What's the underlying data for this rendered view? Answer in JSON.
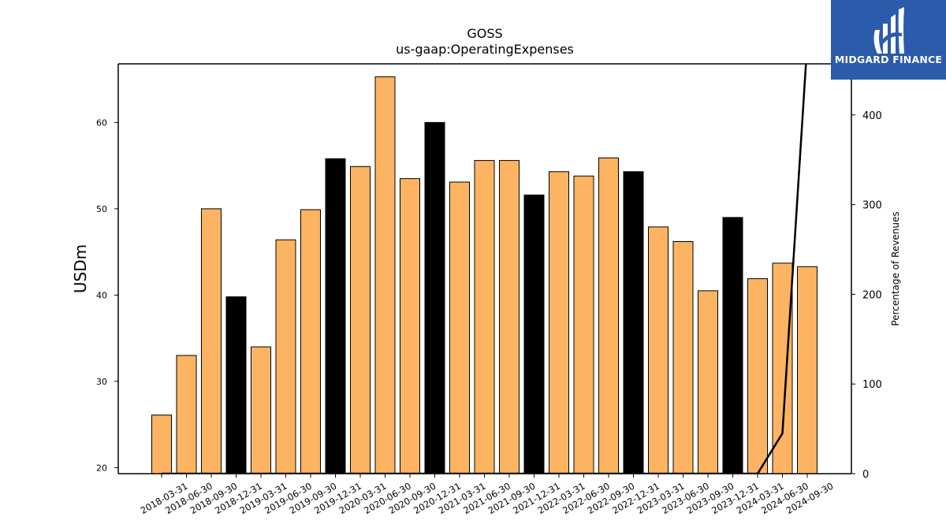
{
  "chart_data": {
    "type": "bar",
    "title": "GOSS",
    "subtitle": "us-gaap:OperatingExpenses",
    "ylabel": "USDm",
    "ylabel_right": "Percentage of Revenues",
    "ylim": [
      19.3,
      66.8
    ],
    "ylim_right": [
      0,
      457
    ],
    "yticks": [
      20,
      30,
      40,
      50,
      60
    ],
    "yticks_right": [
      0,
      100,
      200,
      300,
      400
    ],
    "grid": false,
    "categories": [
      "2018-03-31",
      "2018-06-30",
      "2018-09-30",
      "2018-12-31",
      "2019-03-31",
      "2019-06-30",
      "2019-09-30",
      "2019-12-31",
      "2020-03-31",
      "2020-06-30",
      "2020-09-30",
      "2020-12-31",
      "2021-03-31",
      "2021-06-30",
      "2021-09-30",
      "2021-12-31",
      "2022-03-31",
      "2022-06-30",
      "2022-09-30",
      "2022-12-31",
      "2023-03-31",
      "2023-06-30",
      "2023-09-30",
      "2023-12-31",
      "2024-03-31",
      "2024-06-30",
      "2024-09-30"
    ],
    "series": [
      {
        "values": [
          26.1,
          33.0,
          50.0,
          39.8,
          34.0,
          46.4,
          49.9,
          55.8,
          54.9,
          65.3,
          53.5,
          60.0,
          53.1,
          55.6,
          55.6,
          51.6,
          54.3,
          53.8,
          55.9,
          54.3,
          47.9,
          46.2,
          40.5,
          49.0,
          41.9,
          43.7,
          43.3
        ],
        "highlight": [
          false,
          false,
          false,
          true,
          false,
          false,
          false,
          true,
          false,
          false,
          false,
          true,
          false,
          false,
          false,
          true,
          false,
          false,
          false,
          true,
          false,
          false,
          false,
          true,
          false,
          false,
          false
        ]
      },
      {
        "type": "line",
        "axis": "right",
        "values": [
          0,
          0,
          0,
          0,
          0,
          0,
          0,
          0,
          0,
          0,
          0,
          0,
          0,
          0,
          0,
          0,
          0,
          0,
          0,
          0,
          0,
          0,
          0,
          0,
          0,
          45,
          480
        ]
      }
    ],
    "colors": {
      "bar": "#fdb462",
      "bar_highlight": "#000000",
      "line": "#000000"
    }
  },
  "logo": {
    "text": "MIDGARD FINANCE",
    "background": "#2d5bab"
  }
}
